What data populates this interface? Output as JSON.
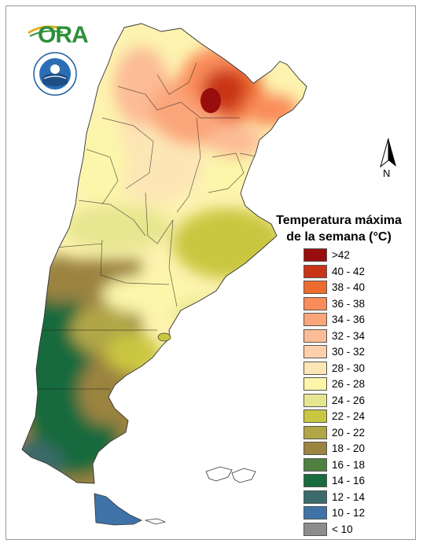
{
  "legend": {
    "title_line1": "Temperatura máxima",
    "title_line2": "de la semana (°C)",
    "items": [
      {
        "label": ">42",
        "color": "#9a0d0d"
      },
      {
        "label": "40 - 42",
        "color": "#c93416"
      },
      {
        "label": "38 - 40",
        "color": "#ee6b30"
      },
      {
        "label": "36 - 38",
        "color": "#f98c5a"
      },
      {
        "label": "34 - 36",
        "color": "#fba67a"
      },
      {
        "label": "32 - 34",
        "color": "#fcbc95"
      },
      {
        "label": "30 - 32",
        "color": "#fdd0ad"
      },
      {
        "label": "28 - 30",
        "color": "#fde6b6"
      },
      {
        "label": "26 - 28",
        "color": "#fbf6a9"
      },
      {
        "label": "24 - 26",
        "color": "#e7e690"
      },
      {
        "label": "22 - 24",
        "color": "#cac640"
      },
      {
        "label": "20 - 22",
        "color": "#b1a646"
      },
      {
        "label": "18 - 20",
        "color": "#9b8340"
      },
      {
        "label": "16 - 18",
        "color": "#4e8040"
      },
      {
        "label": "14 - 16",
        "color": "#176b3c"
      },
      {
        "label": "12 - 14",
        "color": "#3b6b6a"
      },
      {
        "label": "10 - 12",
        "color": "#3f73a7"
      },
      {
        "label": "< 10",
        "color": "#8d8d8d"
      }
    ]
  },
  "north_label": "N",
  "logo": {
    "text": "ORA"
  }
}
